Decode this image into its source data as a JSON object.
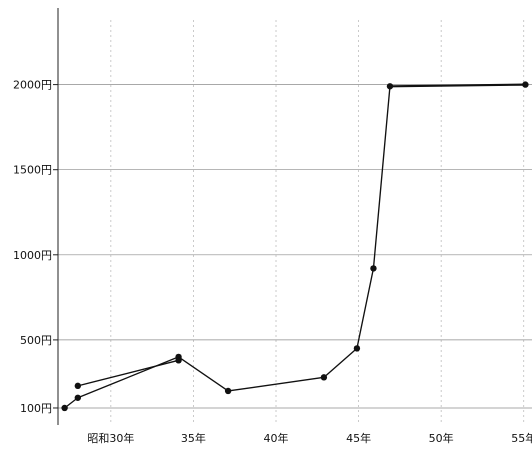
{
  "chart_data": {
    "type": "line",
    "x_ticks": [
      "昭和30年",
      "35年",
      "40年",
      "45年",
      "50年",
      "55年"
    ],
    "x_tick_values": [
      30,
      35,
      40,
      45,
      50,
      55
    ],
    "y_ticks": [
      "100円",
      "500円",
      "1000円",
      "1500円",
      "2000円"
    ],
    "y_tick_values": [
      100,
      500,
      1000,
      1500,
      2000
    ],
    "xlim": [
      26.8,
      55.5
    ],
    "ylim": [
      0,
      2450
    ],
    "series": [
      {
        "points": [
          {
            "x": 27.2,
            "y": 100
          },
          {
            "x": 28.0,
            "y": 160
          },
          {
            "x": 34.1,
            "y": 400
          },
          {
            "x": 37.1,
            "y": 200
          },
          {
            "x": 42.9,
            "y": 280
          },
          {
            "x": 44.9,
            "y": 450
          },
          {
            "x": 45.9,
            "y": 920
          },
          {
            "x": 46.9,
            "y": 1990
          },
          {
            "x": 55.1,
            "y": 2000
          }
        ]
      },
      {
        "points": [
          {
            "x": 28.0,
            "y": 230
          },
          {
            "x": 34.1,
            "y": 380
          }
        ]
      }
    ],
    "grid": true,
    "legend": false
  }
}
